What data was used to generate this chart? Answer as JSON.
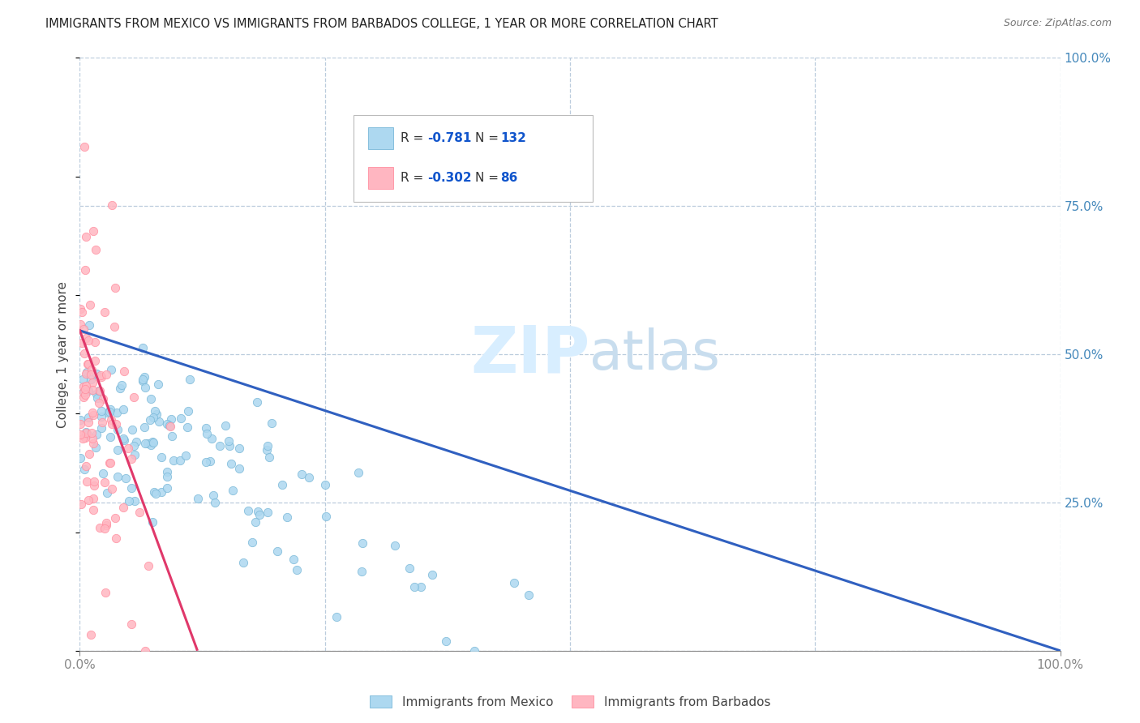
{
  "title": "IMMIGRANTS FROM MEXICO VS IMMIGRANTS FROM BARBADOS COLLEGE, 1 YEAR OR MORE CORRELATION CHART",
  "source": "Source: ZipAtlas.com",
  "ylabel": "College, 1 year or more",
  "legend_label_mexico": "Immigrants from Mexico",
  "legend_label_barbados": "Immigrants from Barbados",
  "R_mexico": -0.781,
  "N_mexico": 132,
  "R_barbados": -0.302,
  "N_barbados": 86,
  "color_mexico_fill": "#ADD8F0",
  "color_mexico_edge": "#7AB8D8",
  "color_barbados_fill": "#FFB6C1",
  "color_barbados_edge": "#FF8FA0",
  "color_mexico_line": "#3060C0",
  "color_barbados_line": "#E0386A",
  "watermark_zip": "ZIP",
  "watermark_atlas": "atlas",
  "watermark_color": "#D8EEFF",
  "background_color": "#FFFFFF",
  "grid_color": "#BBCCDD",
  "title_color": "#222222",
  "right_axis_color": "#4488BB",
  "bottom_axis_color": "#888888",
  "seed": 7
}
